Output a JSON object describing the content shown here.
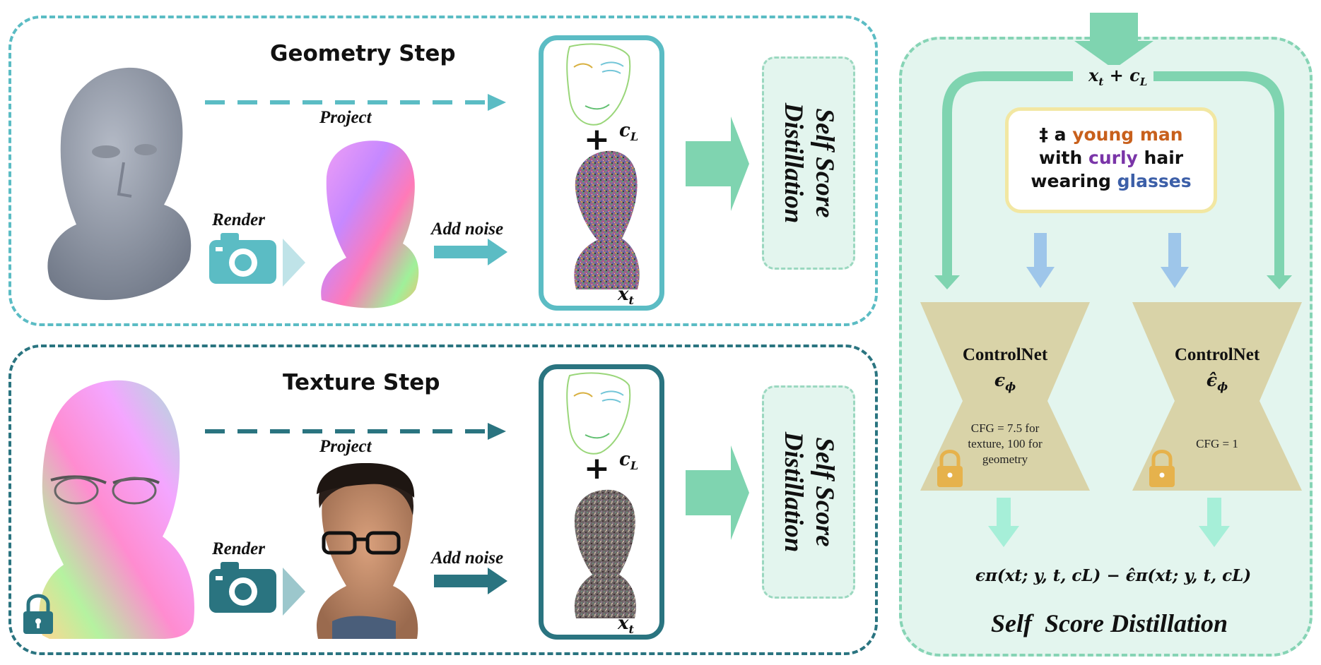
{
  "geometry_step": {
    "title": "Geometry Step",
    "project_label": "Project",
    "render_label": "Render",
    "add_noise_label": "Add noise",
    "c_label": "c",
    "c_sub": "L",
    "x_label": "x",
    "x_sub": "t"
  },
  "texture_step": {
    "title": "Texture Step",
    "project_label": "Project",
    "render_label": "Render",
    "add_noise_label": "Add noise",
    "c_label": "c",
    "c_sub": "L",
    "x_label": "x",
    "x_sub": "t"
  },
  "plus_sign": "+",
  "ssd_box_label_line1": "Self Score",
  "ssd_box_label_line2": "Distillation",
  "ssd_panel": {
    "input": "x",
    "input_sub": "t",
    "input_plus": " + c",
    "input_plus_sub": "L",
    "prompt": {
      "dagger": "‡",
      "w1": " a ",
      "w2": "young man",
      "w3": "with ",
      "w4": "curly",
      "w5": " hair",
      "w6": "wearing ",
      "w7": "glasses",
      "color_young_man": "#c8601c",
      "color_curly": "#7a35a8",
      "color_glasses": "#3c5fa8"
    },
    "controlnet_left": {
      "title": "ControlNet",
      "symbol": "ϵ",
      "sub": "ϕ",
      "cfg_line1": "CFG = 7.5 for",
      "cfg_line2": "texture, 100 for",
      "cfg_line3": "geometry"
    },
    "controlnet_right": {
      "title": "ControlNet",
      "symbol": "ϵ̂",
      "sub": "ϕ",
      "cfg": "CFG = 1"
    },
    "formula": "ϵπ(xt; y, t, cL) − ϵ̂π(xt; y, t, cL)",
    "title": "Self  Score Distillation"
  },
  "colors": {
    "geometry_accent": "#5bbcc4",
    "texture_accent": "#2a7480",
    "green_arrow": "#7fd4b0",
    "blue_arrow": "#9ec6ea",
    "mint_arrow": "#a6efd8",
    "controlnet_fill": "#d9d3a8",
    "lock": "#e6b24c"
  }
}
